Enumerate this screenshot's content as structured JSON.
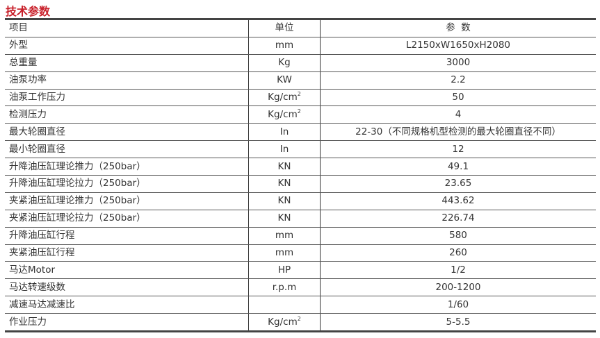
{
  "title": "技术参数",
  "header": {
    "item": "项目",
    "unit": "单位",
    "value": "参  数"
  },
  "rows": [
    {
      "item": "外型",
      "unit": "mm",
      "value": "L2150xW1650xH2080"
    },
    {
      "item": "总重量",
      "unit": "Kg",
      "value": "3000"
    },
    {
      "item": "油泵功率",
      "unit": "KW",
      "value": "2.2"
    },
    {
      "item": "油泵工作压力",
      "unit": "Kg/cm",
      "unit_sup": "2",
      "value": "50"
    },
    {
      "item": "检测压力",
      "unit": "Kg/cm",
      "unit_sup": "2",
      "value": "4"
    },
    {
      "item": "最大轮圈直径",
      "unit": "In",
      "value": "22-30（不同规格机型检测的最大轮圈直径不同）"
    },
    {
      "item": "最小轮圈直径",
      "unit": "In",
      "value": "12"
    },
    {
      "item": "升降油压缸理论推力（250bar）",
      "unit": "KN",
      "value": "49.1"
    },
    {
      "item": "升降油压缸理论拉力（250bar）",
      "unit": "KN",
      "value": "23.65"
    },
    {
      "item": "夹紧油压缸理论推力（250bar）",
      "unit": "KN",
      "value": "443.62"
    },
    {
      "item": "夹紧油压缸理论拉力（250bar）",
      "unit": "KN",
      "value": "226.74"
    },
    {
      "item": "升降油压缸行程",
      "unit": "mm",
      "value": "580"
    },
    {
      "item": "夹紧油压缸行程",
      "unit": "mm",
      "value": "260"
    },
    {
      "item": "马达Motor",
      "unit": "HP",
      "value": "1/2"
    },
    {
      "item": "马达转速级数",
      "unit": "r.p.m",
      "value": "200-1200"
    },
    {
      "item": "减速马达减速比",
      "unit": "",
      "value": "1/60"
    },
    {
      "item": "作业压力",
      "unit": "Kg/cm",
      "unit_sup": "2",
      "value": "5-5.5"
    }
  ],
  "colors": {
    "title": "#c8202a"
  }
}
